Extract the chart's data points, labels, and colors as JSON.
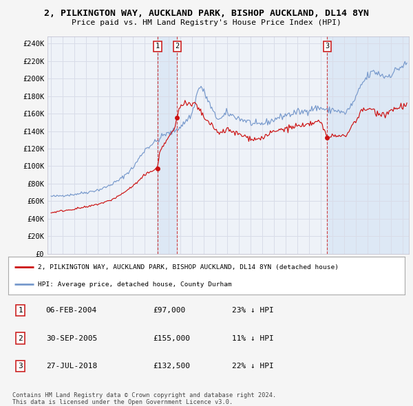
{
  "title1": "2, PILKINGTON WAY, AUCKLAND PARK, BISHOP AUCKLAND, DL14 8YN",
  "title2": "Price paid vs. HM Land Registry's House Price Index (HPI)",
  "background_color": "#f5f5f5",
  "plot_bg": "#eef2f8",
  "grid_color": "#d8dce8",
  "hpi_color": "#7799cc",
  "price_color": "#cc1111",
  "shade_color": "#dde8f5",
  "sales": [
    {
      "num": 1,
      "year": 2004.083,
      "price": 97000,
      "date": "06-FEB-2004",
      "pct": "23%",
      "dir": "↓"
    },
    {
      "num": 2,
      "year": 2005.75,
      "price": 155000,
      "date": "30-SEP-2005",
      "pct": "11%",
      "dir": "↓"
    },
    {
      "num": 3,
      "year": 2018.542,
      "price": 132500,
      "date": "27-JUL-2018",
      "pct": "22%",
      "dir": "↓"
    }
  ],
  "legend_line1": "2, PILKINGTON WAY, AUCKLAND PARK, BISHOP AUCKLAND, DL14 8YN (detached house)",
  "legend_line2": "HPI: Average price, detached house, County Durham",
  "footer": "Contains HM Land Registry data © Crown copyright and database right 2024.\nThis data is licensed under the Open Government Licence v3.0.",
  "ylim": [
    0,
    248000
  ],
  "ytick_vals": [
    0,
    20000,
    40000,
    60000,
    80000,
    100000,
    120000,
    140000,
    160000,
    180000,
    200000,
    220000,
    240000
  ],
  "ytick_labels": [
    "£0",
    "£20K",
    "£40K",
    "£60K",
    "£80K",
    "£100K",
    "£120K",
    "£140K",
    "£160K",
    "£180K",
    "£200K",
    "£220K",
    "£240K"
  ],
  "xlim": [
    1994.7,
    2025.5
  ]
}
